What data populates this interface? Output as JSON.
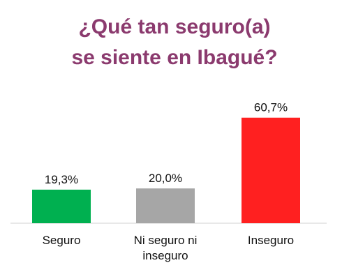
{
  "chart_data": {
    "type": "bar",
    "title_lines": [
      "¿Qué tan seguro(a)",
      "se siente en Ibagué?"
    ],
    "categories": [
      [
        "Seguro"
      ],
      [
        "Ni seguro ni",
        "inseguro"
      ],
      [
        "Inseguro"
      ]
    ],
    "values": [
      19.3,
      20.0,
      60.7
    ],
    "value_labels": [
      "19,3%",
      "20,0%",
      "60,7%"
    ],
    "colors": [
      "#00B050",
      "#A6A6A6",
      "#FF2020"
    ],
    "ylim": [
      0,
      65
    ],
    "grid": false,
    "legend": "none"
  }
}
